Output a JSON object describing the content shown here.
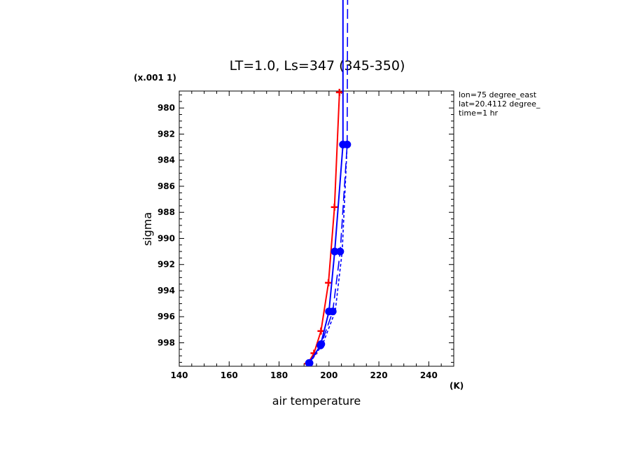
{
  "chart_data": {
    "type": "line",
    "title": "LT=1.0, Ls=347 (345-350)",
    "xlabel": "air temperature",
    "xunit": "(K)",
    "ylabel": "sigma",
    "yscale_note": "(x.001 1)",
    "xlim": [
      140,
      250
    ],
    "ylim": [
      999.8,
      978.7
    ],
    "xticks": [
      140,
      160,
      180,
      200,
      220,
      240
    ],
    "yticks": [
      980,
      982,
      984,
      986,
      988,
      990,
      992,
      994,
      996,
      998
    ],
    "annotations": [
      "lon=75 degree_east",
      "lat=20.4112 degree_",
      "time=1 hr"
    ],
    "grid": false,
    "legend": "none",
    "series": [
      {
        "color": "#ff0000",
        "dash": "solid",
        "marker": "plus",
        "x": [
          191.5,
          194.0,
          196.8,
          199.8,
          202.2,
          204.2
        ],
        "y": [
          999.6,
          998.8,
          997.1,
          993.4,
          987.6,
          978.8
        ]
      },
      {
        "color": "#0000ff",
        "dash": "solid",
        "marker": "circle",
        "x": [
          192.0,
          196.6,
          200.0,
          202.3,
          205.6,
          205.6
        ],
        "y": [
          999.55,
          998.2,
          995.6,
          991.0,
          982.8,
          970.0
        ]
      },
      {
        "color": "#0000ff",
        "dash": "long",
        "marker": "circle",
        "x": [
          192.2,
          196.9,
          201.5,
          204.5,
          207.3,
          207.5
        ],
        "y": [
          999.55,
          998.1,
          995.6,
          991.0,
          982.8,
          970.0
        ]
      },
      {
        "color": "#0000ff",
        "dash": "short",
        "marker": "none",
        "x": [
          192.3,
          197.5,
          202.5,
          205.3,
          207.3
        ],
        "y": [
          999.55,
          998.1,
          995.6,
          991.0,
          982.8
        ]
      }
    ]
  }
}
